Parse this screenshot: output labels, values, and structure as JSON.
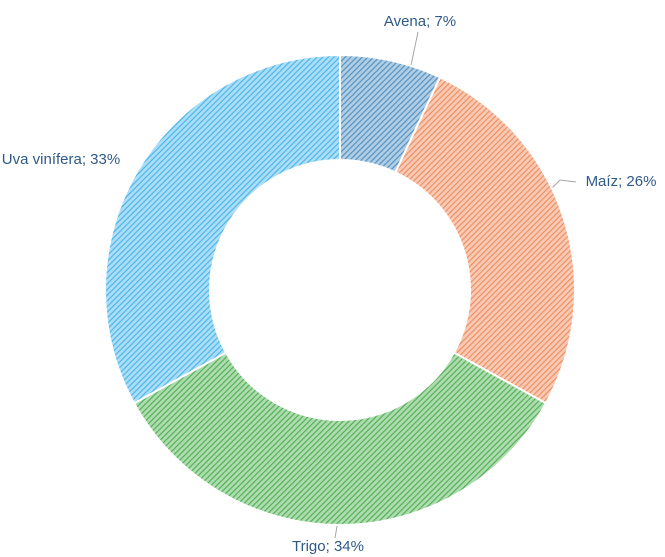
{
  "chart_data": {
    "type": "donut",
    "values": [
      7,
      26,
      34,
      33
    ],
    "value_labels": [
      "Avena; 7%",
      "Maíz; 26%",
      "Trigo; 34%",
      "Uva vinífera; 33%"
    ],
    "colors": [
      "#4f8fc0",
      "#f08a5a",
      "#4caf50",
      "#45b4ea"
    ]
  }
}
